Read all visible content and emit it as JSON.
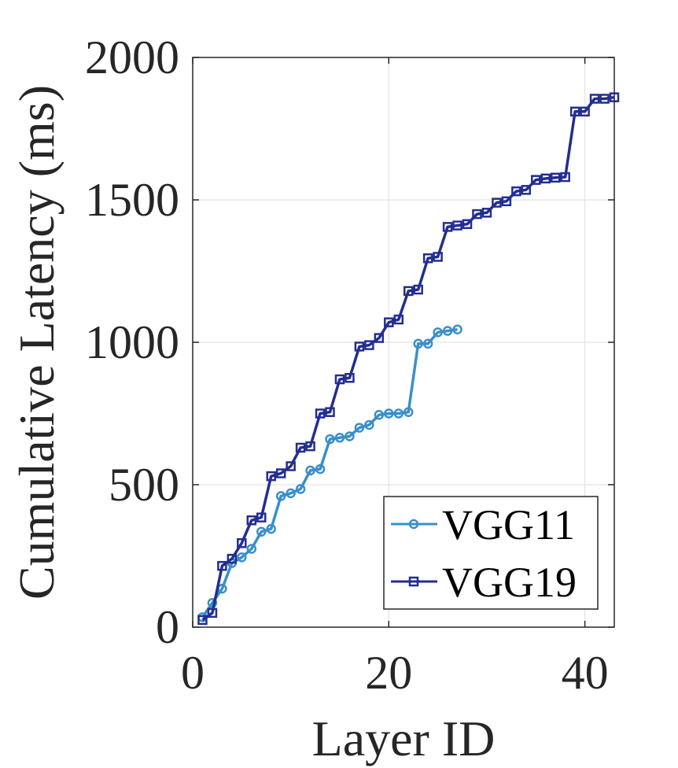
{
  "chart_data": {
    "type": "line",
    "xlabel": "Layer ID",
    "ylabel": "Cumulative  Latency (ms)",
    "xlim": [
      0,
      43
    ],
    "ylim": [
      0,
      2000
    ],
    "x_ticks": [
      0,
      20,
      40
    ],
    "y_ticks": [
      0,
      500,
      1000,
      1500,
      2000
    ],
    "x_tick_labels": [
      "0",
      "20",
      "40"
    ],
    "y_tick_labels": [
      "0",
      "500",
      "1000",
      "1500",
      "2000"
    ],
    "grid": true,
    "legend_position": "bottom-right",
    "series": [
      {
        "name": "VGG11",
        "color": "#3a8fc9",
        "marker": "circle",
        "x": [
          1,
          2,
          3,
          4,
          5,
          6,
          7,
          8,
          9,
          10,
          11,
          12,
          13,
          14,
          15,
          16,
          17,
          18,
          19,
          20,
          21,
          22,
          23,
          24,
          25,
          26,
          27
        ],
        "y": [
          35,
          85,
          135,
          225,
          245,
          275,
          335,
          345,
          460,
          470,
          485,
          550,
          555,
          660,
          665,
          670,
          700,
          710,
          745,
          750,
          750,
          755,
          995,
          995,
          1035,
          1040,
          1045
        ]
      },
      {
        "name": "VGG19",
        "color": "#232e8f",
        "marker": "square",
        "x": [
          1,
          2,
          3,
          4,
          5,
          6,
          7,
          8,
          9,
          10,
          11,
          12,
          13,
          14,
          15,
          16,
          17,
          18,
          19,
          20,
          21,
          22,
          23,
          24,
          25,
          26,
          27,
          28,
          29,
          30,
          31,
          32,
          33,
          34,
          35,
          36,
          37,
          38,
          39,
          40,
          41,
          42,
          43
        ],
        "y": [
          25,
          50,
          215,
          240,
          295,
          375,
          385,
          530,
          540,
          565,
          630,
          635,
          750,
          755,
          870,
          875,
          985,
          990,
          1015,
          1070,
          1080,
          1180,
          1185,
          1295,
          1300,
          1405,
          1410,
          1415,
          1450,
          1455,
          1490,
          1495,
          1530,
          1535,
          1570,
          1575,
          1578,
          1580,
          1810,
          1810,
          1855,
          1855,
          1860
        ]
      }
    ]
  }
}
